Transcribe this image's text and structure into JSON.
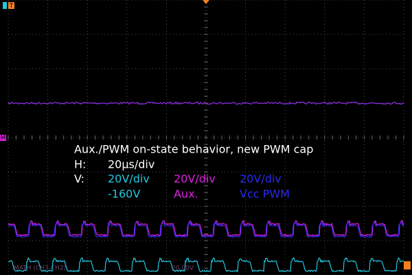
{
  "annotation": {
    "title": "Aux./PWM on-state behavior, new PWM cap",
    "h_label": "H:",
    "h_value": "20µs/div",
    "v_label": "V:",
    "channels": [
      {
        "scale": "20V/div",
        "name": "-160V"
      },
      {
        "scale": "20V/div",
        "name": "Aux."
      },
      {
        "scale": "20V/div",
        "name": "Vcc PWM"
      }
    ]
  },
  "markers": {
    "trigger_left": "T",
    "trigger_top": "T",
    "math": "M"
  },
  "footer": {
    "math": "MATH (CH3-CH2)",
    "scale": "20.00V"
  }
}
